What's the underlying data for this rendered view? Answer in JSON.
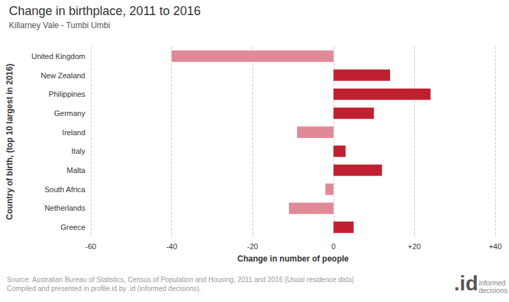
{
  "chart_data": {
    "type": "bar",
    "orientation": "horizontal",
    "title": "Change in birthplace, 2011 to 2016",
    "subtitle": "Killarney Vale - Tumbi Umbi",
    "xlabel": "Change in number of people",
    "ylabel": "Country of birth, (top 10 largest in 2016)",
    "categories": [
      "United Kingdom",
      "New Zealand",
      "Philippines",
      "Germany",
      "Ireland",
      "Italy",
      "Malta",
      "South Africa",
      "Netherlands",
      "Greece"
    ],
    "values": [
      -40,
      14,
      24,
      10,
      -9,
      3,
      12,
      -2,
      -11,
      5
    ],
    "colors": [
      "#e08a98",
      "#c0202f",
      "#c0202f",
      "#c0202f",
      "#e08a98",
      "#c0202f",
      "#c0202f",
      "#e08a98",
      "#e08a98",
      "#c0202f"
    ],
    "xlim": [
      -60,
      40
    ],
    "xticks": [
      -60,
      -40,
      -20,
      0,
      {
        "value": 20,
        "label": "+20"
      },
      {
        "value": 40,
        "label": "+40"
      }
    ],
    "grid": true,
    "annotations": [
      "Source: Australian Bureau of Statistics, Census of Population and Housing, 2011 and 2016 (Usual residence data)",
      "Compiled and presented in profile.id by .id (informed decisions).",
      ".id",
      "informed decisions"
    ]
  }
}
